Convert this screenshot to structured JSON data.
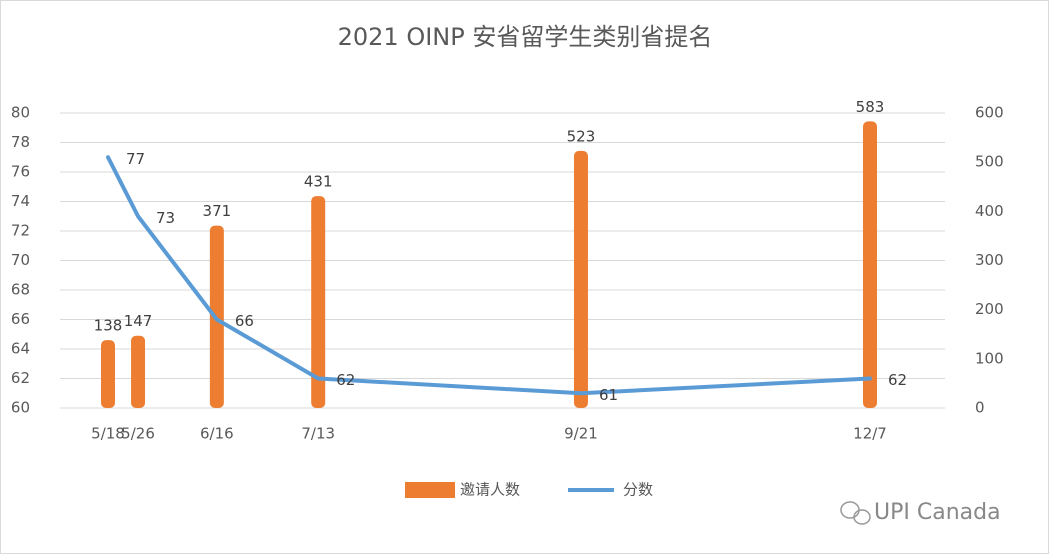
{
  "chart_data": {
    "type": "combo",
    "title": "2021 OINP 安省留学生类别省提名",
    "x": [
      "5/18",
      "5/26",
      "6/16",
      "7/13",
      "9/21",
      "12/7"
    ],
    "series": [
      {
        "name": "邀请人数",
        "type": "bar",
        "axis": "y2",
        "color": "#ED7D31",
        "values": [
          138,
          147,
          371,
          431,
          523,
          583
        ]
      },
      {
        "name": "分数",
        "type": "line",
        "axis": "y",
        "color": "#5B9BD5",
        "values": [
          77,
          73,
          66,
          62,
          61,
          62
        ]
      }
    ],
    "ylim": [
      60,
      80
    ],
    "yticks": [
      60,
      62,
      64,
      66,
      68,
      70,
      72,
      74,
      76,
      78,
      80
    ],
    "y2lim": [
      0,
      600
    ],
    "y2ticks": [
      0,
      100,
      200,
      300,
      400,
      500,
      600
    ],
    "grid": true,
    "legend": "bottom"
  },
  "watermark": "UPI Canada"
}
